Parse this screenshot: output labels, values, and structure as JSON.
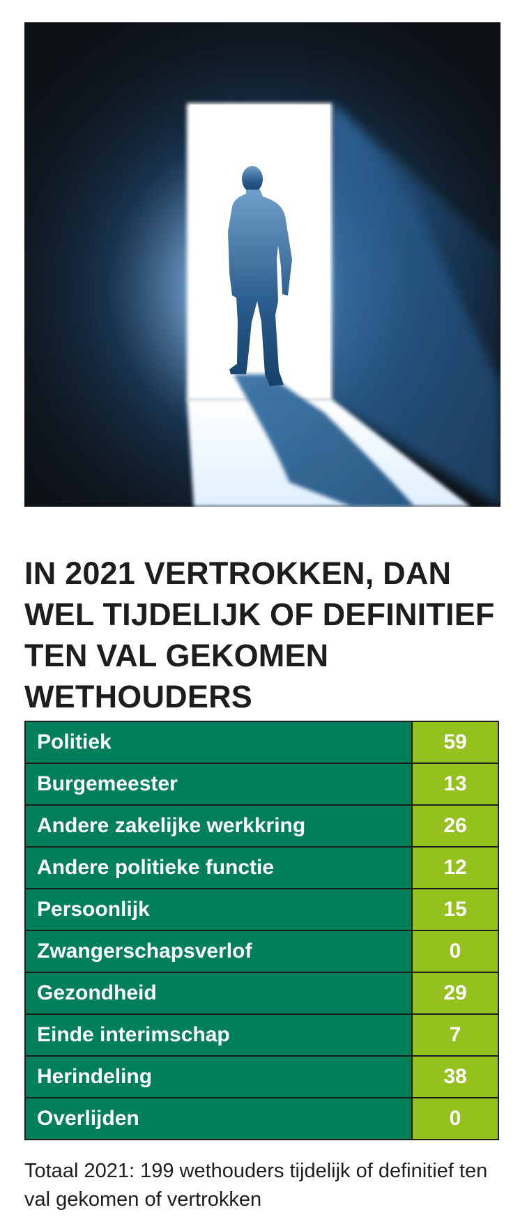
{
  "image": {
    "description_icon": "doorway-silhouette-image"
  },
  "chart_data": {
    "type": "table",
    "title": "IN 2021 VERTROKKEN, DAN WEL TIJDELIJK OF DEFINITIEF TEN VAL GEKOMEN WETHOUDERS",
    "rows": [
      {
        "label": "Politiek",
        "value": "59"
      },
      {
        "label": "Burgemeester",
        "value": "13"
      },
      {
        "label": "Andere zakelijke werkkring",
        "value": "26"
      },
      {
        "label": "Andere politieke functie",
        "value": "12"
      },
      {
        "label": "Persoonlijk",
        "value": "15"
      },
      {
        "label": "Zwangerschapsverlof",
        "value": "0"
      },
      {
        "label": "Gezondheid",
        "value": "29"
      },
      {
        "label": "Einde interimschap",
        "value": "7"
      },
      {
        "label": "Herindeling",
        "value": "38"
      },
      {
        "label": "Overlijden",
        "value": "0"
      }
    ],
    "footnote": "Totaal 2021: 199 wethouders tijdelijk of definitief ten val gekomen of vertrokken"
  },
  "colors": {
    "label_bg": "#00805a",
    "value_bg": "#95c11f",
    "text_dark": "#1d1d1b"
  }
}
